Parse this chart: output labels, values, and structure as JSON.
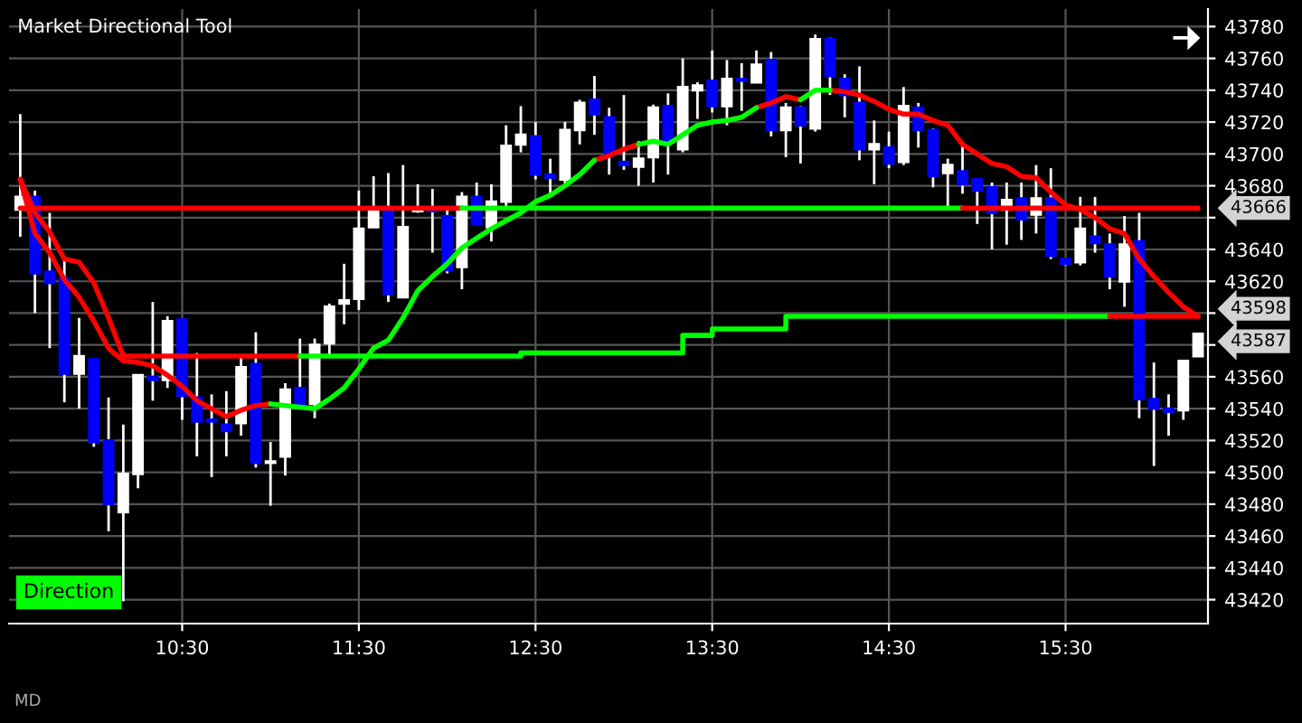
{
  "chart_data": {
    "type": "candlestick",
    "title": "Market Directional Tool",
    "annotations": [
      "Direction",
      "MD",
      "43666",
      "43598",
      "43587"
    ],
    "x": [
      9.5833,
      9.6667,
      9.75,
      9.8333,
      9.9167,
      10,
      10.0833,
      10.1667,
      10.25,
      10.3333,
      10.4167,
      10.5,
      10.5833,
      10.6667,
      10.75,
      10.8333,
      10.9167,
      11,
      11.0833,
      11.1667,
      11.25,
      11.3333,
      11.4167,
      11.5,
      11.5833,
      11.6667,
      11.75,
      11.8333,
      11.9167,
      12,
      12.0833,
      12.1667,
      12.25,
      12.3333,
      12.4167,
      12.5,
      12.5833,
      12.6667,
      12.75,
      12.8333,
      12.9167,
      13,
      13.0833,
      13.1667,
      13.25,
      13.3333,
      13.4167,
      13.5,
      13.5833,
      13.6667,
      13.75,
      13.8333,
      13.9167,
      14,
      14.0833,
      14.1667,
      14.25,
      14.3333,
      14.4167,
      14.5,
      14.5833,
      14.6667,
      14.75,
      14.8333,
      14.9167,
      15,
      15.0833,
      15.1667,
      15.25,
      15.3333,
      15.4167,
      15.5,
      15.5833,
      15.6667,
      15.75,
      15.8333,
      15.9167,
      16,
      16.0833,
      16.1667,
      16.25
    ],
    "ohlc": [
      [
        43665,
        43725,
        43648,
        43673
      ],
      [
        43673,
        43677,
        43600,
        43625
      ],
      [
        43626,
        43663,
        43578,
        43619
      ],
      [
        43622,
        43633,
        43544,
        43562
      ],
      [
        43562,
        43597,
        43540,
        43573
      ],
      [
        43571,
        43571,
        43516,
        43519
      ],
      [
        43520,
        43547,
        43463,
        43480
      ],
      [
        43475,
        43530,
        43419,
        43499
      ],
      [
        43499,
        43561,
        43490,
        43561
      ],
      [
        43560,
        43607,
        43545,
        43558
      ],
      [
        43558,
        43598,
        43553,
        43595
      ],
      [
        43596,
        43596,
        43533,
        43548
      ],
      [
        43547,
        43575,
        43510,
        43532
      ],
      [
        43533,
        43549,
        43497,
        43532
      ],
      [
        43530,
        43551,
        43510,
        43526
      ],
      [
        43531,
        43572,
        43523,
        43566
      ],
      [
        43568,
        43588,
        43503,
        43506
      ],
      [
        43506,
        43519,
        43479,
        43506
      ],
      [
        43510,
        43556,
        43498,
        43552
      ],
      [
        43553,
        43584,
        43542,
        43542
      ],
      [
        43543,
        43584,
        43534,
        43580
      ],
      [
        43581,
        43606,
        43574,
        43604
      ],
      [
        43606,
        43631,
        43593,
        43608
      ],
      [
        43609,
        43677,
        43602,
        43653
      ],
      [
        43654,
        43686,
        43654,
        43664
      ],
      [
        43664,
        43688,
        43607,
        43612
      ],
      [
        43610,
        43693,
        43610,
        43654
      ],
      [
        43664,
        43681,
        43663,
        43666
      ],
      [
        43666,
        43678,
        43638,
        43664
      ],
      [
        43661,
        43665,
        43625,
        43627
      ],
      [
        43629,
        43676,
        43615,
        43673
      ],
      [
        43673,
        43682,
        43656,
        43656
      ],
      [
        43654,
        43681,
        43645,
        43670
      ],
      [
        43670,
        43718,
        43667,
        43705
      ],
      [
        43706,
        43730,
        43701,
        43712
      ],
      [
        43711,
        43720,
        43684,
        43687
      ],
      [
        43687,
        43697,
        43673,
        43685
      ],
      [
        43684,
        43720,
        43680,
        43715
      ],
      [
        43715,
        43734,
        43706,
        43732
      ],
      [
        43734,
        43749,
        43712,
        43725
      ],
      [
        43723,
        43729,
        43687,
        43700
      ],
      [
        43695,
        43737,
        43690,
        43693
      ],
      [
        43692,
        43708,
        43680,
        43697
      ],
      [
        43698,
        43731,
        43682,
        43729
      ],
      [
        43730,
        43738,
        43687,
        43708
      ],
      [
        43703,
        43760,
        43701,
        43742
      ],
      [
        43740,
        43745,
        43722,
        43743
      ],
      [
        43746,
        43765,
        43726,
        43730
      ],
      [
        43730,
        43759,
        43718,
        43747
      ],
      [
        43747,
        43757,
        43727,
        43746
      ],
      [
        43745,
        43765,
        43745,
        43756
      ],
      [
        43759,
        43764,
        43711,
        43715
      ],
      [
        43715,
        43732,
        43698,
        43729
      ],
      [
        43729,
        43730,
        43694,
        43718
      ],
      [
        43716,
        43775,
        43714,
        43772
      ],
      [
        43772,
        43773,
        43737,
        43749
      ],
      [
        43747,
        43750,
        43723,
        43737
      ],
      [
        43732,
        43755,
        43696,
        43703
      ],
      [
        43703,
        43721,
        43681,
        43706
      ],
      [
        43704,
        43714,
        43691,
        43694
      ],
      [
        43695,
        43742,
        43693,
        43730
      ],
      [
        43729,
        43732,
        43704,
        43715
      ],
      [
        43715,
        43716,
        43679,
        43686
      ],
      [
        43688,
        43697,
        43667,
        43693
      ],
      [
        43689,
        43707,
        43675,
        43681
      ],
      [
        43684,
        43684,
        43656,
        43677
      ],
      [
        43679,
        43682,
        43640,
        43663
      ],
      [
        43665,
        43682,
        43643,
        43671
      ],
      [
        43672,
        43682,
        43646,
        43659
      ],
      [
        43662,
        43693,
        43650,
        43672
      ],
      [
        43672,
        43691,
        43634,
        43636
      ],
      [
        43634,
        43634,
        43630,
        43631
      ],
      [
        43632,
        43673,
        43630,
        43653
      ],
      [
        43648,
        43673,
        43638,
        43644
      ],
      [
        43643,
        43650,
        43615,
        43623
      ],
      [
        43620,
        43661,
        43604,
        43643
      ],
      [
        43645,
        43663,
        43534,
        43546
      ],
      [
        43546,
        43569,
        43504,
        43540
      ],
      [
        43540,
        43549,
        43523,
        43538
      ],
      [
        43539,
        43570,
        43533,
        43570
      ],
      [
        43573,
        43587,
        43573,
        43587
      ]
    ],
    "colors": [
      "#ffffff",
      "#0000ff",
      "#0000ff",
      "#0000ff",
      "#ffffff",
      "#0000ff",
      "#0000ff",
      "#ffffff",
      "#ffffff",
      "#0000ff",
      "#ffffff",
      "#0000ff",
      "#0000ff",
      "#0000ff",
      "#0000ff",
      "#ffffff",
      "#0000ff",
      "#ffffff",
      "#ffffff",
      "#0000ff",
      "#ffffff",
      "#ffffff",
      "#ffffff",
      "#ffffff",
      "#ffffff",
      "#0000ff",
      "#ffffff",
      "#ffffff",
      "#0000ff",
      "#0000ff",
      "#ffffff",
      "#0000ff",
      "#ffffff",
      "#ffffff",
      "#ffffff",
      "#0000ff",
      "#0000ff",
      "#ffffff",
      "#ffffff",
      "#0000ff",
      "#0000ff",
      "#0000ff",
      "#ffffff",
      "#ffffff",
      "#0000ff",
      "#ffffff",
      "#ffffff",
      "#0000ff",
      "#ffffff",
      "#0000ff",
      "#ffffff",
      "#0000ff",
      "#ffffff",
      "#0000ff",
      "#ffffff",
      "#0000ff",
      "#0000ff",
      "#0000ff",
      "#ffffff",
      "#0000ff",
      "#ffffff",
      "#0000ff",
      "#0000ff",
      "#ffffff",
      "#0000ff",
      "#0000ff",
      "#0000ff",
      "#ffffff",
      "#0000ff",
      "#ffffff",
      "#0000ff",
      "#0000ff",
      "#ffffff",
      "#0000ff",
      "#0000ff",
      "#ffffff",
      "#0000ff",
      "#0000ff",
      "#0000ff",
      "#ffffff",
      "#ffffff"
    ],
    "series": [
      {
        "type": "line",
        "color": "#ff0000",
        "values": [
          43684,
          43650,
          43638,
          43621,
          43610,
          43595,
          43578,
          43570,
          43569,
          43567,
          43561,
          43554,
          43545,
          43540,
          43535,
          43539,
          43542,
          43543,
          null,
          null,
          null,
          null,
          null,
          null,
          null,
          null,
          null,
          null,
          null,
          null,
          null,
          null,
          null,
          null,
          null,
          null,
          null,
          null,
          null,
          43696,
          43699,
          43703,
          43706,
          null,
          null,
          null,
          null,
          null,
          null,
          null,
          43729,
          43732,
          43736,
          43734,
          null,
          43740,
          43739,
          43737,
          43733,
          43728,
          43725,
          43725,
          43721,
          43718,
          43706,
          43700,
          43694,
          43692,
          43686,
          43685,
          43676,
          43668,
          43665,
          43660,
          43653,
          43650,
          43634,
          43623,
          43613,
          43604,
          43598
        ]
      },
      {
        "type": "line",
        "color": "#00ff00",
        "values": [
          null,
          null,
          null,
          null,
          null,
          null,
          null,
          null,
          null,
          null,
          null,
          null,
          null,
          null,
          null,
          null,
          null,
          43543,
          43542,
          43541,
          43540,
          43546,
          43553,
          43565,
          43578,
          43583,
          43597,
          43614,
          43623,
          43631,
          43641,
          43647,
          43653,
          43658,
          43663,
          43670,
          43674,
          43680,
          43687,
          43696,
          null,
          null,
          43706,
          43708,
          43706,
          43712,
          43718,
          43720,
          43721,
          43723,
          43729,
          null,
          null,
          43734,
          43740,
          43740,
          null,
          null,
          null,
          null,
          null,
          null,
          null,
          null,
          null,
          null,
          null,
          null,
          null,
          null,
          null,
          null,
          null,
          null,
          null,
          null,
          null,
          null,
          null,
          null,
          null
        ]
      },
      {
        "type": "line",
        "x": [
          9.5833,
          9.6667,
          9.75,
          9.8333,
          9.9167,
          10,
          10.0833,
          10.1667
        ],
        "values": [
          43684,
          43663,
          43651,
          43634,
          43632,
          43619,
          43597,
          43573
        ],
        "color": "#ff0000"
      },
      {
        "type": "line",
        "x": [
          9.5833,
          12.0833
        ],
        "values": [
          43666,
          43666
        ],
        "color": "#ff0000"
      },
      {
        "type": "line",
        "x": [
          12.0833,
          14.9167
        ],
        "values": [
          43666,
          43666
        ],
        "color": "#00ff00"
      },
      {
        "type": "line",
        "x": [
          14.9167,
          16.25
        ],
        "values": [
          43666,
          43666
        ],
        "color": "#ff0000"
      },
      {
        "type": "line",
        "x": [
          10.1667,
          11.1667
        ],
        "values": [
          43573,
          43573
        ],
        "color": "#ff0000"
      },
      {
        "type": "step",
        "x": [
          11.1667,
          12.4167,
          13.3333,
          13.5,
          13.9167,
          15.75
        ],
        "values": [
          43573,
          43575,
          43586,
          43590,
          43598,
          43598
        ],
        "color": "#00ff00"
      },
      {
        "type": "line",
        "x": [
          15.75,
          16.25
        ],
        "values": [
          43598,
          43598
        ],
        "color": "#ff0000"
      }
    ],
    "xlim": [
      9.52,
      16.306
    ],
    "xticks": [
      {
        "value": 10.5,
        "label": "10:30"
      },
      {
        "value": 11.5,
        "label": "11:30"
      },
      {
        "value": 12.5,
        "label": "12:30"
      },
      {
        "value": 13.5,
        "label": "13:30"
      },
      {
        "value": 14.5,
        "label": "14:30"
      },
      {
        "value": 15.5,
        "label": "15:30"
      }
    ],
    "ylim": [
      43405,
      43791
    ],
    "yticks": [
      43420,
      43440,
      43460,
      43480,
      43500,
      43520,
      43540,
      43560,
      {
        "value": 43580,
        "label": null
      },
      {
        "value": 43600,
        "label": null
      },
      43620,
      43640,
      {
        "value": 43660,
        "label": null
      },
      43680,
      43700,
      43720,
      43740,
      43760,
      43780
    ],
    "grid": true,
    "legend": false
  }
}
